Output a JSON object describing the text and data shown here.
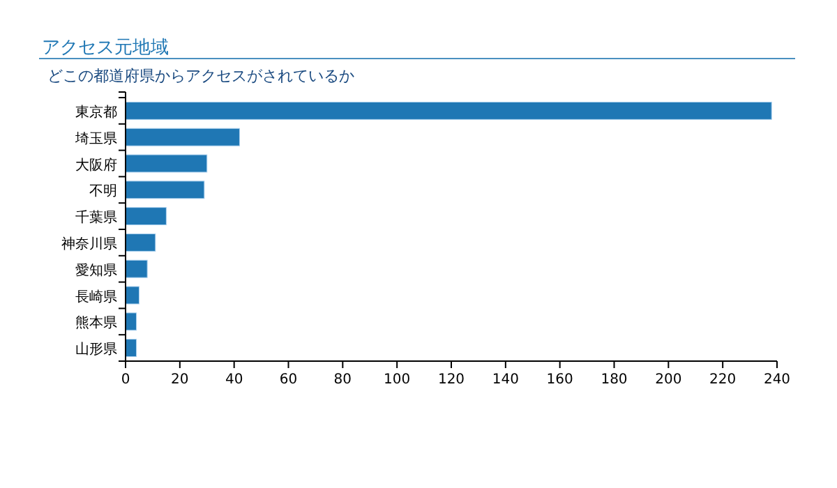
{
  "chart_data": {
    "type": "bar",
    "orientation": "horizontal",
    "title": "アクセス元地域",
    "subtitle": "どこの都道府県からアクセスがされているか",
    "categories": [
      "東京都",
      "埼玉県",
      "大阪府",
      "不明",
      "千葉県",
      "神奈川県",
      "愛知県",
      "長崎県",
      "熊本県",
      "山形県"
    ],
    "values": [
      238,
      42,
      30,
      29,
      15,
      11,
      8,
      5,
      4,
      4
    ],
    "color": "#1f77b4",
    "xlim": [
      0,
      240
    ],
    "xticks": [
      0,
      20,
      40,
      60,
      80,
      100,
      120,
      140,
      160,
      180,
      200,
      220,
      240
    ],
    "grid": false
  }
}
